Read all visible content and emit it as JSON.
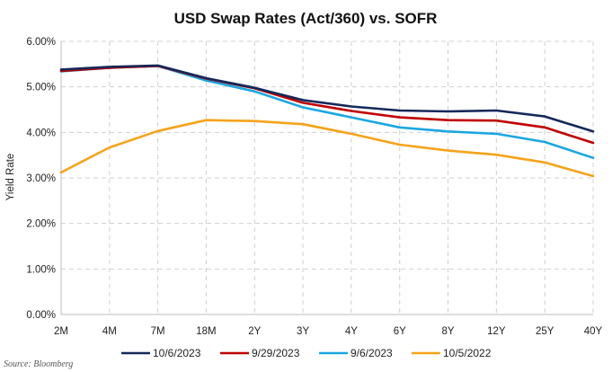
{
  "chart_data": {
    "type": "line",
    "title": "USD Swap Rates (Act/360) vs. SOFR",
    "xlabel": "",
    "ylabel": "Yield Rate",
    "ylim": [
      0,
      6
    ],
    "ytick_values": [
      0,
      1,
      2,
      3,
      4,
      5,
      6
    ],
    "ytick_labels": [
      "0.00%",
      "1.00%",
      "2.00%",
      "3.00%",
      "4.00%",
      "5.00%",
      "6.00%"
    ],
    "grid": true,
    "legend": "bottom",
    "categories": [
      "2M",
      "4M",
      "7M",
      "18M",
      "2Y",
      "3Y",
      "4Y",
      "6Y",
      "8Y",
      "12Y",
      "25Y",
      "40Y"
    ],
    "series": [
      {
        "name": "10/6/2023",
        "color": "#14285a",
        "values": [
          5.38,
          5.44,
          5.47,
          5.19,
          4.98,
          4.71,
          4.57,
          4.48,
          4.46,
          4.48,
          4.35,
          4.02
        ]
      },
      {
        "name": "9/29/2023",
        "color": "#c00000",
        "values": [
          5.35,
          5.42,
          5.46,
          5.18,
          4.97,
          4.65,
          4.47,
          4.33,
          4.27,
          4.26,
          4.11,
          3.77
        ]
      },
      {
        "name": "9/6/2023",
        "color": "#1aa7e0",
        "values": [
          5.34,
          5.42,
          5.46,
          5.14,
          4.9,
          4.55,
          4.33,
          4.11,
          4.02,
          3.97,
          3.79,
          3.44
        ]
      },
      {
        "name": "10/5/2022",
        "color": "#f5a31a",
        "values": [
          3.12,
          3.67,
          4.03,
          4.27,
          4.25,
          4.18,
          3.97,
          3.73,
          3.6,
          3.51,
          3.34,
          3.04
        ]
      }
    ]
  },
  "source_note": "Source: Bloomberg"
}
